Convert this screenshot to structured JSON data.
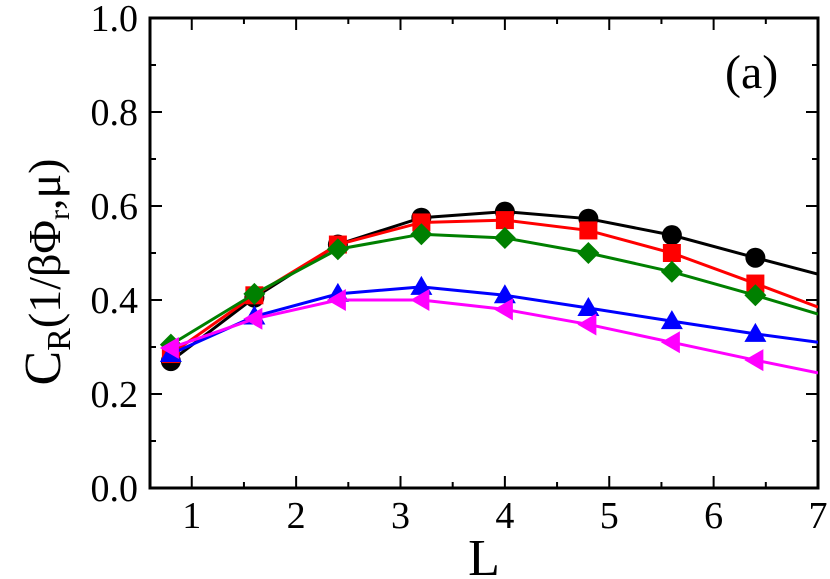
{
  "chart_data": {
    "type": "line",
    "title": "",
    "xlabel": "L",
    "ylabel_main": "C",
    "ylabel_sub": "R",
    "ylabel_args": "(1/βΦ",
    "ylabel_args_sub": "r",
    "ylabel_args_tail": ",μ)",
    "annotation": "(a)",
    "xlim": [
      0.6,
      7.0
    ],
    "ylim": [
      0.0,
      1.0
    ],
    "xticks": [
      1,
      2,
      3,
      4,
      5,
      6,
      7
    ],
    "yticks": [
      0.0,
      0.2,
      0.4,
      0.6,
      0.8,
      1.0
    ],
    "xtick_labels": [
      "1",
      "2",
      "3",
      "4",
      "5",
      "6",
      "7"
    ],
    "ytick_labels": [
      "0.0",
      "0.2",
      "0.4",
      "0.6",
      "0.8",
      "1.0"
    ],
    "grid": false,
    "series": [
      {
        "color": "#000000",
        "marker": "circle",
        "x": [
          0.8,
          1.6,
          2.4,
          3.2,
          4.0,
          4.8,
          5.6,
          6.4
        ],
        "y": [
          0.27,
          0.405,
          0.518,
          0.575,
          0.588,
          0.573,
          0.538,
          0.49
        ],
        "line_end": [
          7.0,
          0.455
        ]
      },
      {
        "color": "#ff0000",
        "marker": "square",
        "x": [
          0.8,
          1.6,
          2.4,
          3.2,
          4.0,
          4.8,
          5.6,
          6.4
        ],
        "y": [
          0.285,
          0.41,
          0.518,
          0.565,
          0.57,
          0.548,
          0.5,
          0.435
        ],
        "line_end": [
          7.0,
          0.385
        ]
      },
      {
        "color": "#008000",
        "marker": "diamond",
        "x": [
          0.8,
          1.6,
          2.4,
          3.2,
          4.0,
          4.8,
          5.6,
          6.4
        ],
        "y": [
          0.305,
          0.413,
          0.508,
          0.54,
          0.532,
          0.5,
          0.46,
          0.41
        ],
        "line_end": [
          7.0,
          0.37
        ]
      },
      {
        "color": "#0000ff",
        "marker": "triangle-up",
        "x": [
          0.8,
          1.6,
          2.4,
          3.2,
          4.0,
          4.8,
          5.6,
          6.4
        ],
        "y": [
          0.285,
          0.365,
          0.413,
          0.428,
          0.41,
          0.383,
          0.355,
          0.328
        ],
        "line_end": [
          7.0,
          0.31
        ]
      },
      {
        "color": "#ff00ff",
        "marker": "triangle-left",
        "x": [
          0.8,
          1.6,
          2.4,
          3.2,
          4.0,
          4.8,
          5.6,
          6.4
        ],
        "y": [
          0.298,
          0.36,
          0.4,
          0.4,
          0.38,
          0.348,
          0.31,
          0.272
        ],
        "line_end": [
          7.0,
          0.245
        ]
      }
    ]
  }
}
